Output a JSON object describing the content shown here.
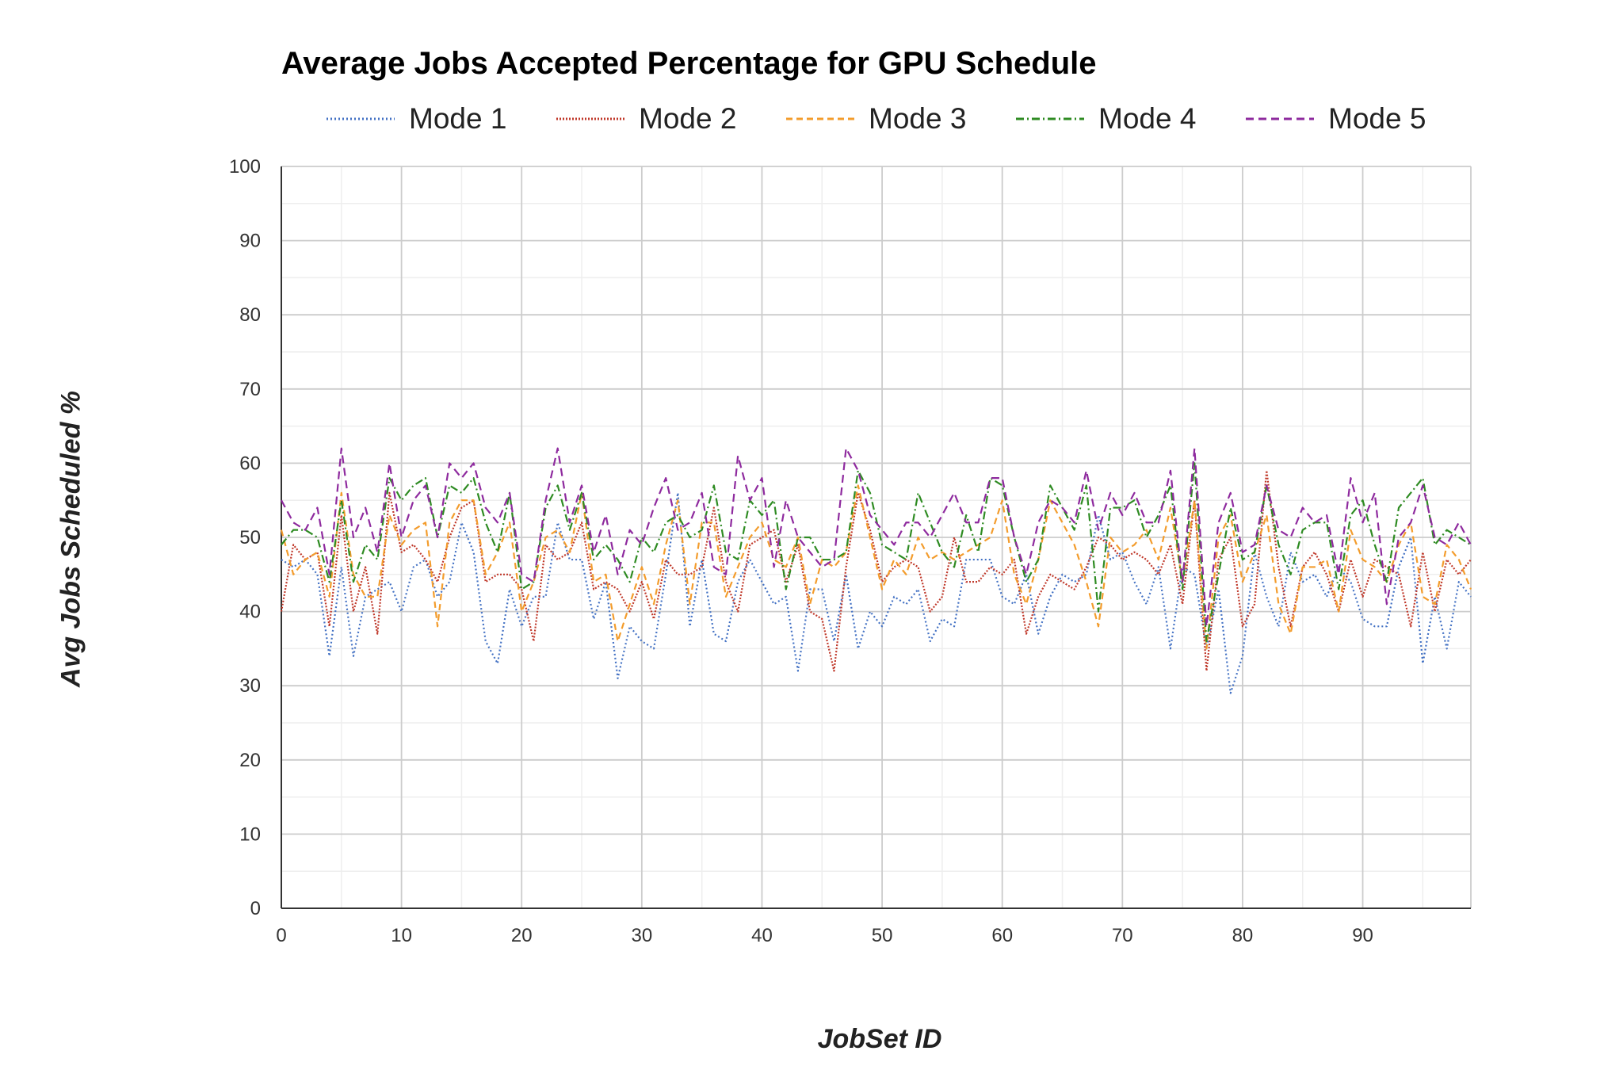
{
  "chart_data": {
    "type": "line",
    "title": "Average Jobs Accepted Percentage for GPU Schedule",
    "xlabel": "JobSet ID",
    "ylabel": "Avg Jobs Scheduled %",
    "xlim": [
      0,
      99
    ],
    "ylim": [
      0,
      100
    ],
    "x_ticks": [
      0,
      10,
      20,
      30,
      40,
      50,
      60,
      70,
      80,
      90
    ],
    "y_ticks": [
      0,
      10,
      20,
      30,
      40,
      50,
      60,
      70,
      80,
      90,
      100
    ],
    "grid": true,
    "legend_position": "top",
    "x": [
      0,
      1,
      2,
      3,
      4,
      5,
      6,
      7,
      8,
      9,
      10,
      11,
      12,
      13,
      14,
      15,
      16,
      17,
      18,
      19,
      20,
      21,
      22,
      23,
      24,
      25,
      26,
      27,
      28,
      29,
      30,
      31,
      32,
      33,
      34,
      35,
      36,
      37,
      38,
      39,
      40,
      41,
      42,
      43,
      44,
      45,
      46,
      47,
      48,
      49,
      50,
      51,
      52,
      53,
      54,
      55,
      56,
      57,
      58,
      59,
      60,
      61,
      62,
      63,
      64,
      65,
      66,
      67,
      68,
      69,
      70,
      71,
      72,
      73,
      74,
      75,
      76,
      77,
      78,
      79,
      80,
      81,
      82,
      83,
      84,
      85,
      86,
      87,
      88,
      89,
      90,
      91,
      92,
      93,
      94,
      95,
      96,
      97,
      98,
      99
    ],
    "series": [
      {
        "name": "Mode 1",
        "color": "#4472c4",
        "dash": "dotted",
        "values": [
          47,
          46,
          47,
          45,
          34,
          46,
          34,
          42,
          43,
          44,
          40,
          46,
          47,
          42,
          44,
          52,
          48,
          36,
          33,
          43,
          38,
          42,
          42,
          52,
          47,
          47,
          39,
          44,
          31,
          38,
          36,
          35,
          45,
          56,
          38,
          47,
          37,
          36,
          44,
          47,
          44,
          41,
          42,
          32,
          43,
          43,
          36,
          45,
          35,
          40,
          38,
          42,
          41,
          43,
          36,
          39,
          38,
          47,
          47,
          47,
          42,
          41,
          45,
          37,
          42,
          45,
          44,
          45,
          53,
          47,
          48,
          44,
          41,
          46,
          35,
          46,
          45,
          35,
          43,
          29,
          34,
          48,
          42,
          38,
          48,
          44,
          45,
          42,
          46,
          44,
          39,
          38,
          38,
          46,
          50,
          33,
          42,
          35,
          44,
          42
        ]
      },
      {
        "name": "Mode 2",
        "color": "#c0392b",
        "dash": "dense-dotted",
        "values": [
          40,
          49,
          47,
          48,
          38,
          53,
          40,
          46,
          37,
          56,
          48,
          49,
          47,
          44,
          50,
          54,
          55,
          44,
          45,
          45,
          43,
          36,
          49,
          47,
          48,
          52,
          43,
          44,
          43,
          40,
          44,
          39,
          47,
          45,
          45,
          46,
          54,
          44,
          40,
          49,
          50,
          51,
          44,
          49,
          40,
          39,
          32,
          46,
          56,
          51,
          44,
          46,
          47,
          46,
          40,
          42,
          50,
          44,
          44,
          46,
          45,
          47,
          37,
          42,
          45,
          44,
          43,
          46,
          50,
          49,
          47,
          48,
          47,
          45,
          49,
          41,
          55,
          32,
          47,
          50,
          38,
          41,
          59,
          46,
          38,
          46,
          48,
          45,
          40,
          47,
          42,
          47,
          46,
          45,
          38,
          48,
          40,
          47,
          45,
          47
        ]
      },
      {
        "name": "Mode 3",
        "color": "#f39c2c",
        "dash": "short-dash",
        "values": [
          51,
          45,
          47,
          48,
          42,
          56,
          45,
          42,
          42,
          53,
          49,
          51,
          52,
          38,
          52,
          55,
          55,
          45,
          48,
          52,
          40,
          44,
          50,
          51,
          48,
          56,
          44,
          45,
          36,
          41,
          46,
          41,
          49,
          55,
          41,
          52,
          52,
          42,
          46,
          50,
          52,
          47,
          46,
          50,
          41,
          47,
          46,
          48,
          57,
          50,
          43,
          47,
          45,
          50,
          47,
          48,
          47,
          48,
          49,
          50,
          55,
          45,
          41,
          47,
          55,
          52,
          49,
          44,
          38,
          50,
          48,
          49,
          51,
          47,
          54,
          44,
          55,
          35,
          50,
          53,
          44,
          48,
          53,
          41,
          37,
          46,
          46,
          47,
          40,
          51,
          47,
          46,
          44,
          49,
          52,
          42,
          41,
          49,
          47,
          43
        ]
      },
      {
        "name": "Mode 4",
        "color": "#2e8b22",
        "dash": "dash-dot",
        "values": [
          49,
          51,
          51,
          50,
          44,
          55,
          44,
          49,
          47,
          58,
          55,
          57,
          58,
          50,
          57,
          56,
          58,
          52,
          48,
          56,
          43,
          44,
          54,
          57,
          51,
          56,
          47,
          49,
          47,
          44,
          50,
          48,
          52,
          53,
          50,
          51,
          57,
          48,
          47,
          55,
          53,
          55,
          43,
          50,
          50,
          47,
          47,
          48,
          59,
          56,
          49,
          48,
          47,
          56,
          52,
          48,
          46,
          53,
          48,
          58,
          57,
          50,
          44,
          47,
          57,
          54,
          51,
          57,
          40,
          54,
          54,
          55,
          50,
          53,
          57,
          43,
          60,
          36,
          45,
          54,
          47,
          48,
          57,
          49,
          45,
          51,
          52,
          52,
          43,
          53,
          55,
          49,
          44,
          54,
          56,
          58,
          49,
          51,
          50,
          49
        ]
      },
      {
        "name": "Mode 5",
        "color": "#8e2a9e",
        "dash": "dash",
        "values": [
          55,
          52,
          51,
          54,
          45,
          62,
          50,
          54,
          48,
          60,
          50,
          55,
          57,
          50,
          60,
          58,
          60,
          54,
          52,
          56,
          45,
          44,
          55,
          62,
          52,
          57,
          48,
          53,
          45,
          51,
          49,
          54,
          58,
          51,
          52,
          56,
          46,
          45,
          61,
          55,
          58,
          46,
          55,
          50,
          48,
          46,
          47,
          62,
          59,
          53,
          51,
          49,
          52,
          52,
          50,
          53,
          56,
          52,
          52,
          58,
          58,
          50,
          45,
          52,
          55,
          54,
          52,
          59,
          51,
          56,
          53,
          56,
          52,
          52,
          59,
          44,
          62,
          38,
          52,
          56,
          48,
          49,
          57,
          51,
          50,
          54,
          52,
          53,
          45,
          58,
          52,
          56,
          41,
          50,
          52,
          57,
          50,
          49,
          52,
          49
        ]
      }
    ]
  }
}
